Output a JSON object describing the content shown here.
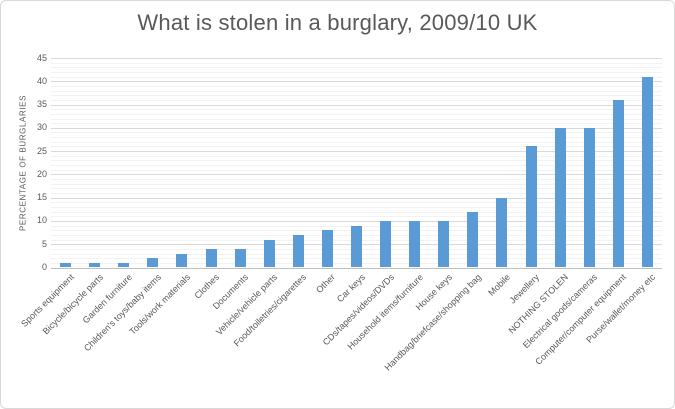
{
  "chart_data": {
    "type": "bar",
    "title": "What is stolen in a burglary, 2009/10 UK",
    "xlabel": "",
    "ylabel": "PERCENTAGE OF BURGLARIES",
    "ylim": [
      0,
      45
    ],
    "ytick_step": 5,
    "minor_grid_step": 1,
    "grid": true,
    "legend": false,
    "categories": [
      "Sports equipment",
      "Bicycle/bicycle parts",
      "Garden furniture",
      "Children's toys/baby items",
      "Tools/work materials",
      "Clothes",
      "Documents",
      "Vehicle/vehicle parts",
      "Food/toiletries/cigarettes",
      "Other",
      "Car keys",
      "CDs/tapes/videos/DVDs",
      "Household items/furniture",
      "House keys",
      "Handbag/briefcase/shopping bag",
      "Mobile",
      "Jewellery",
      "NOTHING STOLEN",
      "Electrical goods/cameras",
      "Computer/computer equipment",
      "Purse/wallet/money etc"
    ],
    "values": [
      1,
      1,
      1,
      2,
      3,
      4,
      4,
      6,
      7,
      8,
      9,
      10,
      10,
      10,
      12,
      15,
      26,
      30,
      30,
      36,
      41
    ]
  },
  "colors": {
    "bar": "#5b9bd5",
    "text": "#595959",
    "grid_major": "#d9d9d9",
    "grid_minor": "#f2f2f2",
    "axis_line": "#bfbfbf",
    "frame_border": "#d9d9d9"
  }
}
